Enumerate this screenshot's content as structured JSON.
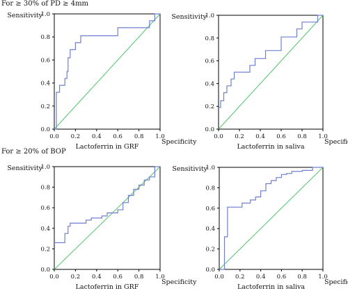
{
  "section_titles": [
    "For ≥ 30% of PD ≥ 4mm",
    "For ≥ 20% of BOP"
  ],
  "colors": {
    "roc_line": "#6f7fd0",
    "reference_line": "#4fc46a",
    "axis": "#000000"
  },
  "chart_data": [
    {
      "type": "line",
      "section": "For ≥ 30% of PD ≥ 4mm",
      "ylabel": "Sensitivity",
      "xlabel": "Lactoferrin in GRF",
      "xlabel_end": "Specificity",
      "x_ticks": [
        "0.0",
        "0.2",
        "0.4",
        "0.6",
        "0.8",
        "1.0"
      ],
      "y_ticks": [
        "0.0",
        "0.2",
        "0.4",
        "0.6",
        "0.8",
        "1.0"
      ],
      "xlim": [
        0,
        1
      ],
      "ylim": [
        0,
        1
      ],
      "series": [
        {
          "x": [
            0,
            0.02,
            0.02,
            0.05,
            0.05,
            0.1,
            0.1,
            0.12,
            0.12,
            0.13,
            0.13,
            0.15,
            0.15,
            0.2,
            0.2,
            0.25,
            0.25,
            0.27,
            0.27,
            0.6,
            0.6,
            0.9,
            0.9,
            0.95,
            0.95,
            1.0
          ],
          "y": [
            0,
            0,
            0.32,
            0.32,
            0.38,
            0.38,
            0.44,
            0.44,
            0.5,
            0.5,
            0.62,
            0.62,
            0.69,
            0.69,
            0.75,
            0.75,
            0.81,
            0.81,
            0.81,
            0.81,
            0.88,
            0.88,
            0.94,
            0.94,
            1.0,
            1.0
          ]
        }
      ],
      "reference_diagonal": true
    },
    {
      "type": "line",
      "section": "For ≥ 30% of PD ≥ 4mm",
      "ylabel": "Sensitivity",
      "xlabel": "Lactoferrin in saliva",
      "xlabel_end": "Specificity",
      "x_ticks": [
        "0.0",
        "0.2",
        "0.4",
        "0.6",
        "0.8",
        "1.0"
      ],
      "y_ticks": [
        "0.0",
        "0.2",
        "0.4",
        "0.6",
        "0.8",
        "1.0"
      ],
      "xlim": [
        0,
        1
      ],
      "ylim": [
        0,
        1
      ],
      "series": [
        {
          "x": [
            0,
            0.02,
            0.02,
            0.05,
            0.05,
            0.08,
            0.08,
            0.12,
            0.12,
            0.15,
            0.15,
            0.22,
            0.22,
            0.3,
            0.3,
            0.35,
            0.35,
            0.45,
            0.45,
            0.6,
            0.6,
            0.75,
            0.75,
            0.8,
            0.8,
            0.95,
            0.95,
            1.0
          ],
          "y": [
            0.19,
            0.19,
            0.25,
            0.25,
            0.32,
            0.32,
            0.38,
            0.38,
            0.44,
            0.44,
            0.5,
            0.5,
            0.5,
            0.5,
            0.56,
            0.56,
            0.62,
            0.62,
            0.69,
            0.69,
            0.81,
            0.81,
            0.88,
            0.88,
            0.94,
            0.94,
            1.0,
            1.0
          ]
        }
      ],
      "reference_diagonal": true
    },
    {
      "type": "line",
      "section": "For ≥ 20% of BOP",
      "ylabel": "Sensitivity",
      "xlabel": "Lactoferrin in GRF",
      "xlabel_end": "Specificity",
      "x_ticks": [
        "0.0",
        "0.2",
        "0.4",
        "0.6",
        "0.8",
        "1.0"
      ],
      "y_ticks": [
        "0.0",
        "0.2",
        "0.4",
        "0.6",
        "0.8",
        "1.0"
      ],
      "xlim": [
        0,
        1
      ],
      "ylim": [
        0,
        1
      ],
      "series": [
        {
          "x": [
            0,
            0.1,
            0.1,
            0.13,
            0.13,
            0.15,
            0.15,
            0.2,
            0.2,
            0.3,
            0.3,
            0.35,
            0.35,
            0.45,
            0.45,
            0.5,
            0.5,
            0.6,
            0.6,
            0.65,
            0.65,
            0.7,
            0.7,
            0.75,
            0.75,
            0.8,
            0.8,
            0.85,
            0.85,
            0.9,
            0.9,
            0.95,
            0.95,
            1.0
          ],
          "y": [
            0.26,
            0.26,
            0.35,
            0.35,
            0.42,
            0.42,
            0.45,
            0.45,
            0.45,
            0.45,
            0.48,
            0.48,
            0.5,
            0.5,
            0.52,
            0.52,
            0.55,
            0.55,
            0.58,
            0.58,
            0.65,
            0.65,
            0.72,
            0.72,
            0.78,
            0.78,
            0.82,
            0.82,
            0.87,
            0.87,
            0.9,
            0.9,
            1.0,
            1.0
          ]
        }
      ],
      "reference_diagonal": true
    },
    {
      "type": "line",
      "section": "For ≥ 20% of BOP",
      "ylabel": "Sensitivity",
      "xlabel": "Lactoferrin in saliva",
      "xlabel_end": "Specificity",
      "x_ticks": [
        "0.0",
        "0.2",
        "0.4",
        "0.6",
        "0.8",
        "1.0"
      ],
      "y_ticks": [
        "0.0",
        "0.2",
        "0.4",
        "0.6",
        "0.8",
        "1.0"
      ],
      "xlim": [
        0,
        1
      ],
      "ylim": [
        0,
        1
      ],
      "series": [
        {
          "x": [
            0,
            0.05,
            0.05,
            0.08,
            0.08,
            0.22,
            0.22,
            0.3,
            0.3,
            0.35,
            0.35,
            0.4,
            0.4,
            0.45,
            0.45,
            0.5,
            0.5,
            0.55,
            0.55,
            0.6,
            0.6,
            0.65,
            0.65,
            0.7,
            0.7,
            0.8,
            0.8,
            0.9,
            0.9,
            1.0
          ],
          "y": [
            0,
            0,
            0.32,
            0.32,
            0.61,
            0.61,
            0.65,
            0.65,
            0.68,
            0.68,
            0.71,
            0.71,
            0.77,
            0.77,
            0.84,
            0.84,
            0.87,
            0.87,
            0.9,
            0.9,
            0.93,
            0.93,
            0.94,
            0.94,
            0.96,
            0.96,
            0.97,
            0.97,
            1.0,
            1.0
          ]
        }
      ],
      "reference_diagonal": true
    }
  ]
}
